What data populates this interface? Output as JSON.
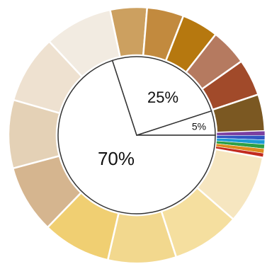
{
  "chart_data": [
    {
      "type": "pie",
      "title": "",
      "slices": [
        {
          "label": "70%",
          "value": 70
        },
        {
          "label": "25%",
          "value": 25
        },
        {
          "label": "5%",
          "value": 5
        }
      ],
      "colors": {
        "fill": "#ffffff",
        "stroke": "#333333"
      }
    },
    {
      "type": "pie",
      "title": "",
      "slices": [
        {
          "value": 4.2,
          "color": "#cca060"
        },
        {
          "value": 4.2,
          "color": "#c28a3e"
        },
        {
          "value": 4.2,
          "color": "#b6780f"
        },
        {
          "value": 4.2,
          "color": "#b57a60"
        },
        {
          "value": 4.2,
          "color": "#a14a2a"
        },
        {
          "value": 4.2,
          "color": "#7b5822"
        },
        {
          "value": 0.5,
          "color": "#7a3fa0"
        },
        {
          "value": 0.5,
          "color": "#2f57c3"
        },
        {
          "value": 0.5,
          "color": "#1c9ad6"
        },
        {
          "value": 0.5,
          "color": "#2e9f46"
        },
        {
          "value": 0.5,
          "color": "#de8b1e"
        },
        {
          "value": 0.5,
          "color": "#c22a1f"
        },
        {
          "value": 7.8,
          "color": "#f6e6c0"
        },
        {
          "value": 7.8,
          "color": "#f5df9f"
        },
        {
          "value": 7.8,
          "color": "#f2d88e"
        },
        {
          "value": 7.8,
          "color": "#f0cf72"
        },
        {
          "value": 7.8,
          "color": "#d5b58f"
        },
        {
          "value": 7.8,
          "color": "#e4d1b6"
        },
        {
          "value": 7.8,
          "color": "#eee1d0"
        },
        {
          "value": 7.8,
          "color": "#f2ebe1"
        }
      ]
    }
  ]
}
